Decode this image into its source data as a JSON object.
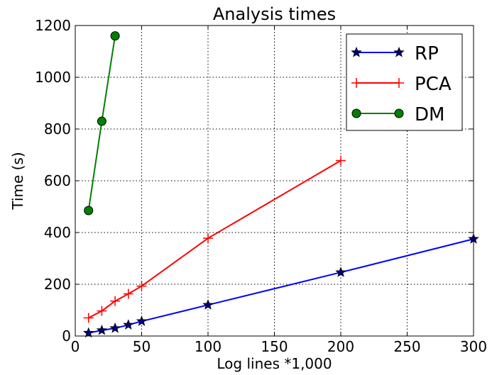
{
  "chart_data": {
    "type": "line",
    "title": "Analysis times",
    "xlabel": "Log lines *1,000",
    "ylabel": "Time (s)",
    "xlim": [
      0,
      300
    ],
    "ylim": [
      0,
      1200
    ],
    "xticks": [
      0,
      50,
      100,
      150,
      200,
      250,
      300
    ],
    "yticks": [
      0,
      200,
      400,
      600,
      800,
      1000,
      1200
    ],
    "grid": true,
    "legend_position": "top-right",
    "series": [
      {
        "name": "RP",
        "color": "#0000ff",
        "marker": "star",
        "x": [
          10,
          20,
          30,
          40,
          50,
          100,
          200,
          300
        ],
        "y": [
          12,
          22,
          30,
          43,
          57,
          120,
          246,
          375
        ]
      },
      {
        "name": "PCA",
        "color": "#ff0000",
        "marker": "plus",
        "x": [
          10,
          20,
          30,
          40,
          50,
          100,
          200
        ],
        "y": [
          70,
          97,
          135,
          163,
          193,
          378,
          678
        ]
      },
      {
        "name": "DM",
        "color": "#008000",
        "marker": "circle",
        "x": [
          10,
          20,
          30
        ],
        "y": [
          485,
          830,
          1160
        ]
      }
    ]
  }
}
